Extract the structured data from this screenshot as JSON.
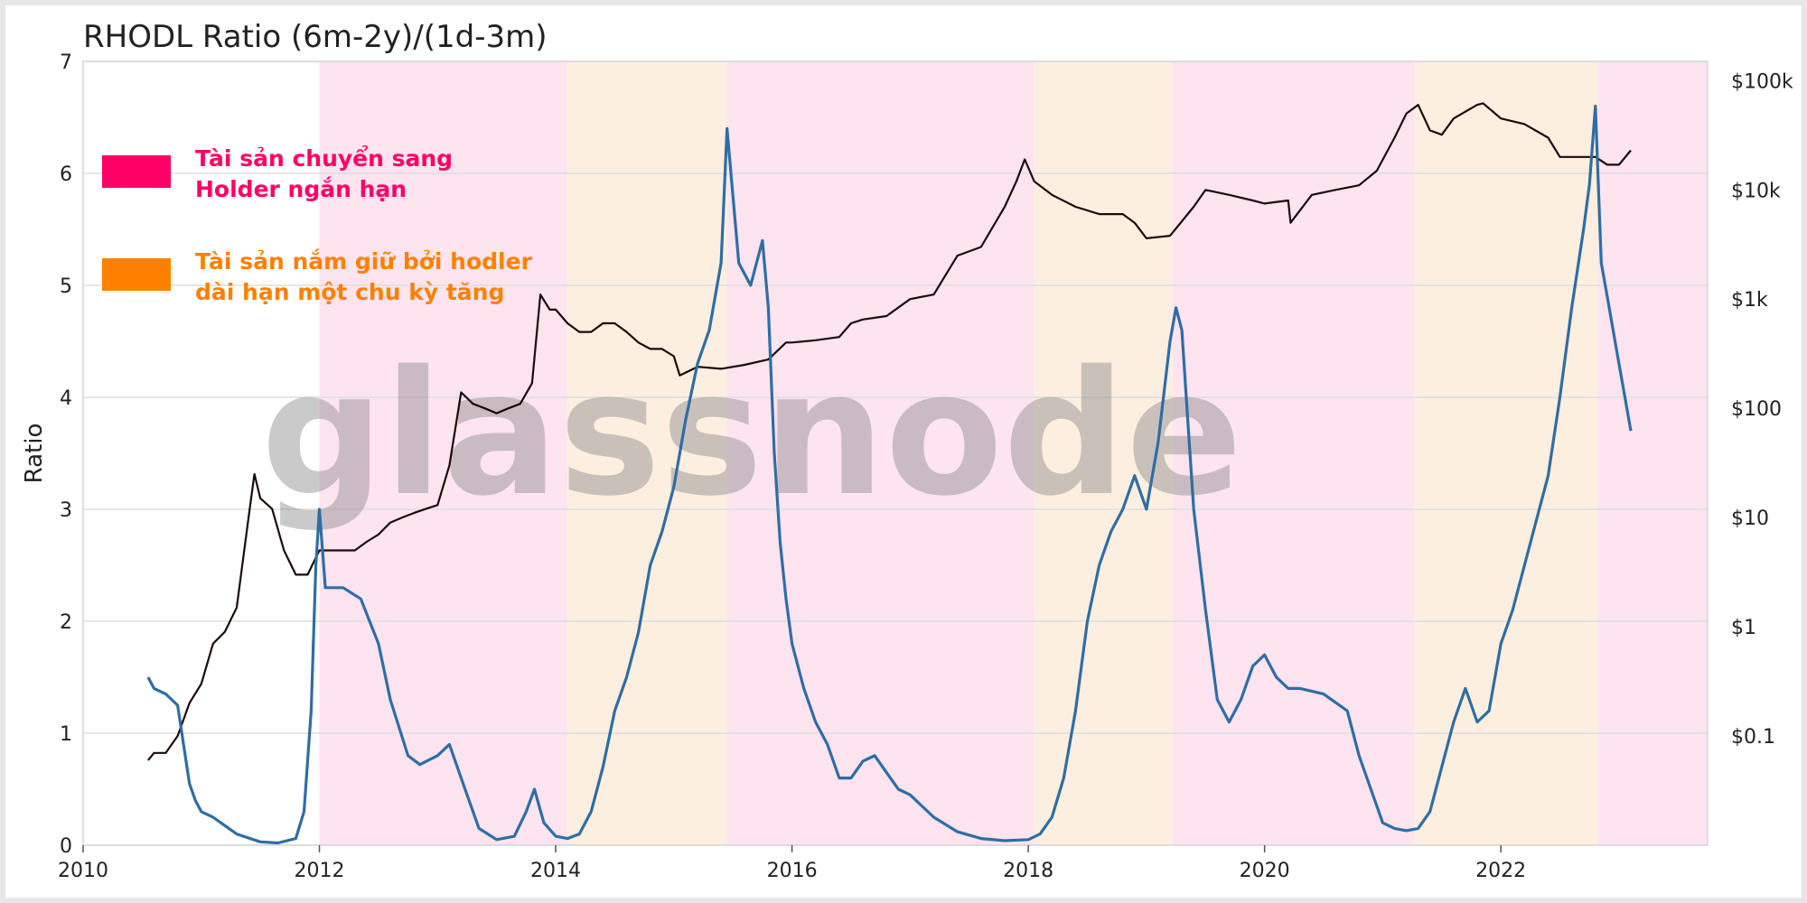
{
  "chart_data": {
    "type": "line",
    "title": "RHODL Ratio (6m-2y)/(1d-3m)",
    "xlabel": "",
    "ylabel": "Ratio",
    "xlim": [
      2010.0,
      2023.75
    ],
    "ylim": [
      0,
      7
    ],
    "y_ticks": [
      "0",
      "1",
      "2",
      "3",
      "4",
      "5",
      "6",
      "7"
    ],
    "x_ticks": [
      "2010",
      "2012",
      "2014",
      "2016",
      "2018",
      "2020",
      "2022"
    ],
    "y2_scale": "log",
    "y2lim": [
      0.01,
      150000
    ],
    "y2_ticks": [
      {
        "value": 0.1,
        "label": "$0.1"
      },
      {
        "value": 1,
        "label": "$1"
      },
      {
        "value": 10,
        "label": "$10"
      },
      {
        "value": 100,
        "label": "$100"
      },
      {
        "value": 1000,
        "label": "$1k"
      },
      {
        "value": 10000,
        "label": "$10k"
      },
      {
        "value": 100000,
        "label": "$100k"
      }
    ],
    "grid": true,
    "watermark": "glassnode",
    "legend": {
      "placement": "top-left",
      "items": [
        {
          "line1": "Tài sản chuyển sang",
          "line2": "Holder ngắn hạn",
          "color": "#ff0066"
        },
        {
          "line1": "Tài sản nắm giữ bởi hodler",
          "line2": "dài hạn một chu kỳ tăng",
          "color": "#ff8000"
        }
      ]
    },
    "bands": [
      {
        "start": 2012.0,
        "end": 2014.1,
        "kind": "short"
      },
      {
        "start": 2014.1,
        "end": 2015.45,
        "kind": "long"
      },
      {
        "start": 2015.45,
        "end": 2018.05,
        "kind": "short"
      },
      {
        "start": 2018.05,
        "end": 2019.22,
        "kind": "long"
      },
      {
        "start": 2019.22,
        "end": 2021.27,
        "kind": "short"
      },
      {
        "start": 2021.27,
        "end": 2022.82,
        "kind": "long"
      },
      {
        "start": 2022.82,
        "end": 2023.75,
        "kind": "short"
      }
    ],
    "colors": {
      "ratio": "#2e6da4",
      "price": "#1a0a0a",
      "band_short": "#fde4ef",
      "band_long": "#fdefe0",
      "grid": "#dddddd"
    },
    "series": [
      {
        "name": "",
        "axis": "left",
        "x": [
          2010.55,
          2010.6,
          2010.7,
          2010.8,
          2010.9,
          2010.95,
          2011.0,
          2011.1,
          2011.3,
          2011.5,
          2011.65,
          2011.8,
          2011.87,
          2011.93,
          2011.97,
          2012.0,
          2012.05,
          2012.2,
          2012.35,
          2012.5,
          2012.6,
          2012.75,
          2012.85,
          2013.0,
          2013.1,
          2013.2,
          2013.35,
          2013.5,
          2013.65,
          2013.75,
          2013.82,
          2013.9,
          2014.0,
          2014.1,
          2014.2,
          2014.3,
          2014.4,
          2014.5,
          2014.6,
          2014.7,
          2014.8,
          2014.9,
          2015.0,
          2015.1,
          2015.2,
          2015.3,
          2015.4,
          2015.45,
          2015.5,
          2015.55,
          2015.65,
          2015.75,
          2015.8,
          2015.85,
          2015.9,
          2015.95,
          2016.0,
          2016.1,
          2016.2,
          2016.3,
          2016.4,
          2016.5,
          2016.6,
          2016.7,
          2016.8,
          2016.9,
          2017.0,
          2017.2,
          2017.4,
          2017.6,
          2017.8,
          2018.0,
          2018.1,
          2018.2,
          2018.3,
          2018.4,
          2018.5,
          2018.6,
          2018.7,
          2018.8,
          2018.9,
          2019.0,
          2019.1,
          2019.2,
          2019.25,
          2019.3,
          2019.35,
          2019.4,
          2019.5,
          2019.6,
          2019.7,
          2019.8,
          2019.9,
          2020.0,
          2020.1,
          2020.2,
          2020.3,
          2020.5,
          2020.7,
          2020.8,
          2020.9,
          2021.0,
          2021.1,
          2021.2,
          2021.3,
          2021.4,
          2021.5,
          2021.6,
          2021.7,
          2021.75,
          2021.8,
          2021.9,
          2022.0,
          2022.1,
          2022.2,
          2022.3,
          2022.4,
          2022.5,
          2022.6,
          2022.7,
          2022.75,
          2022.8,
          2022.85,
          2022.9,
          2022.95,
          2023.0,
          2023.05,
          2023.1
        ],
        "values": [
          1.5,
          1.4,
          1.35,
          1.25,
          0.55,
          0.4,
          0.3,
          0.25,
          0.1,
          0.03,
          0.02,
          0.06,
          0.3,
          1.2,
          2.5,
          3.0,
          2.3,
          2.3,
          2.2,
          1.8,
          1.3,
          0.8,
          0.72,
          0.8,
          0.9,
          0.6,
          0.15,
          0.05,
          0.08,
          0.3,
          0.5,
          0.2,
          0.08,
          0.06,
          0.1,
          0.3,
          0.7,
          1.2,
          1.5,
          1.9,
          2.5,
          2.8,
          3.2,
          3.8,
          4.3,
          4.6,
          5.2,
          6.4,
          5.8,
          5.2,
          5.0,
          5.4,
          4.8,
          3.5,
          2.7,
          2.2,
          1.8,
          1.4,
          1.1,
          0.9,
          0.6,
          0.6,
          0.75,
          0.8,
          0.65,
          0.5,
          0.45,
          0.25,
          0.12,
          0.06,
          0.04,
          0.05,
          0.1,
          0.25,
          0.6,
          1.2,
          2.0,
          2.5,
          2.8,
          3.0,
          3.3,
          3.0,
          3.6,
          4.5,
          4.8,
          4.6,
          3.8,
          3.0,
          2.1,
          1.3,
          1.1,
          1.3,
          1.6,
          1.7,
          1.5,
          1.4,
          1.4,
          1.35,
          1.2,
          0.8,
          0.5,
          0.2,
          0.15,
          0.13,
          0.15,
          0.3,
          0.7,
          1.1,
          1.4,
          1.25,
          1.1,
          1.2,
          1.8,
          2.1,
          2.5,
          2.9,
          3.3,
          4.0,
          4.8,
          5.5,
          5.9,
          6.6,
          5.2,
          4.9,
          4.6,
          4.3,
          4.0,
          3.7
        ]
      },
      {
        "name": "",
        "axis": "right",
        "x": [
          2010.55,
          2010.6,
          2010.7,
          2010.8,
          2010.9,
          2011.0,
          2011.1,
          2011.2,
          2011.3,
          2011.4,
          2011.45,
          2011.5,
          2011.6,
          2011.7,
          2011.8,
          2011.9,
          2012.0,
          2012.1,
          2012.2,
          2012.3,
          2012.4,
          2012.5,
          2012.6,
          2012.7,
          2012.8,
          2012.9,
          2013.0,
          2013.1,
          2013.2,
          2013.3,
          2013.4,
          2013.5,
          2013.6,
          2013.7,
          2013.8,
          2013.87,
          2013.95,
          2014.0,
          2014.1,
          2014.2,
          2014.3,
          2014.4,
          2014.5,
          2014.6,
          2014.7,
          2014.8,
          2014.9,
          2015.0,
          2015.05,
          2015.2,
          2015.4,
          2015.6,
          2015.8,
          2015.95,
          2016.0,
          2016.2,
          2016.4,
          2016.5,
          2016.6,
          2016.8,
          2017.0,
          2017.2,
          2017.4,
          2017.6,
          2017.8,
          2017.9,
          2017.97,
          2018.05,
          2018.2,
          2018.4,
          2018.6,
          2018.8,
          2018.9,
          2019.0,
          2019.2,
          2019.4,
          2019.5,
          2019.7,
          2019.9,
          2020.0,
          2020.2,
          2020.22,
          2020.4,
          2020.6,
          2020.8,
          2020.95,
          2021.1,
          2021.2,
          2021.3,
          2021.4,
          2021.5,
          2021.6,
          2021.8,
          2021.85,
          2022.0,
          2022.2,
          2022.4,
          2022.5,
          2022.6,
          2022.8,
          2022.9,
          2023.0,
          2023.1
        ],
        "values": [
          0.06,
          0.07,
          0.07,
          0.1,
          0.2,
          0.3,
          0.7,
          0.9,
          1.5,
          10,
          25,
          15,
          12,
          5,
          3,
          3,
          5,
          5,
          5,
          5,
          6,
          7,
          9,
          10,
          11,
          12,
          13,
          30,
          140,
          110,
          100,
          90,
          100,
          110,
          170,
          1100,
          800,
          800,
          600,
          500,
          500,
          600,
          600,
          500,
          400,
          350,
          350,
          300,
          200,
          240,
          230,
          250,
          280,
          400,
          400,
          420,
          450,
          600,
          650,
          700,
          1000,
          1100,
          2500,
          3000,
          7000,
          12000,
          19000,
          12000,
          9000,
          7000,
          6000,
          6000,
          5000,
          3600,
          3800,
          7000,
          10000,
          9000,
          8000,
          7500,
          8000,
          5000,
          9000,
          10000,
          11000,
          15000,
          30000,
          50000,
          60000,
          35000,
          32000,
          45000,
          60000,
          62000,
          45000,
          40000,
          30000,
          20000,
          20000,
          20000,
          17000,
          17000,
          23000
        ]
      }
    ]
  }
}
